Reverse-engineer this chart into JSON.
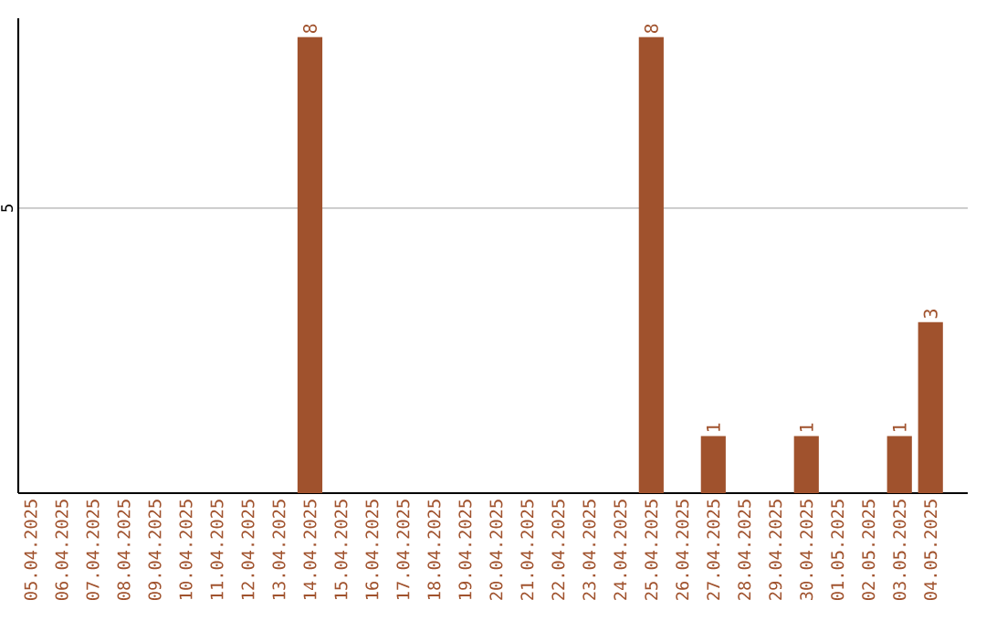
{
  "chart_data": {
    "type": "bar",
    "categories": [
      "05.04.2025",
      "06.04.2025",
      "07.04.2025",
      "08.04.2025",
      "09.04.2025",
      "10.04.2025",
      "11.04.2025",
      "12.04.2025",
      "13.04.2025",
      "14.04.2025",
      "15.04.2025",
      "16.04.2025",
      "17.04.2025",
      "18.04.2025",
      "19.04.2025",
      "20.04.2025",
      "21.04.2025",
      "22.04.2025",
      "23.04.2025",
      "24.04.2025",
      "25.04.2025",
      "26.04.2025",
      "27.04.2025",
      "28.04.2025",
      "29.04.2025",
      "30.04.2025",
      "01.05.2025",
      "02.05.2025",
      "03.05.2025",
      "04.05.2025"
    ],
    "values": [
      0,
      0,
      0,
      0,
      0,
      0,
      0,
      0,
      0,
      8,
      0,
      0,
      0,
      0,
      0,
      0,
      0,
      0,
      0,
      0,
      8,
      0,
      1,
      0,
      0,
      1,
      0,
      0,
      1,
      3
    ],
    "value_labels": [
      null,
      null,
      null,
      null,
      null,
      null,
      null,
      null,
      null,
      "8",
      null,
      null,
      null,
      null,
      null,
      null,
      null,
      null,
      null,
      null,
      "8",
      null,
      "1",
      null,
      null,
      "1",
      null,
      null,
      "1",
      "3"
    ],
    "color": "#a0522d",
    "ylim": [
      0,
      8.33
    ],
    "yticks": [
      5
    ],
    "grid": "y"
  }
}
